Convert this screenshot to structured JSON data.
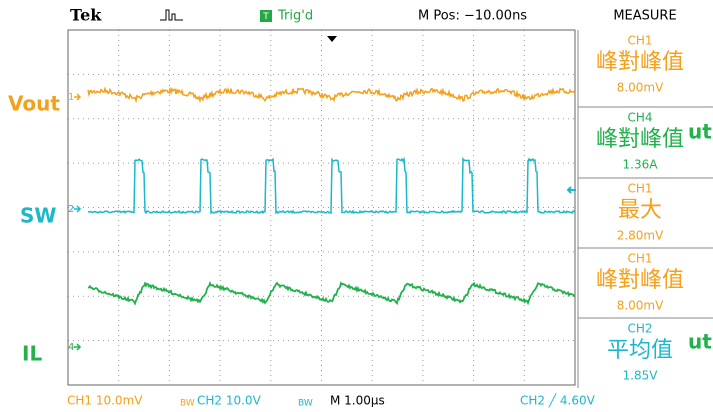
{
  "header": {
    "brand": "Tek",
    "trigger": "Trig'd",
    "position": "M Pos: −10.00ns",
    "menu": "MEASURE"
  },
  "channels": [
    {
      "label": "Vout",
      "marker": "1"
    },
    {
      "label": "SW",
      "marker": "2"
    },
    {
      "label": "IL",
      "marker": "4"
    }
  ],
  "measurements": [
    {
      "source": "CH1",
      "name": "峰對峰值",
      "value": "8.00mV"
    },
    {
      "source": "CH4",
      "name": "峰對峰值",
      "value": "1.36A"
    },
    {
      "source": "CH1",
      "name": "最大",
      "value": "2.80mV"
    },
    {
      "source": "CH1",
      "name": "峰對峰值",
      "value": "8.00mV"
    },
    {
      "source": "CH2",
      "name": "平均值",
      "value": "1.85V"
    }
  ],
  "footer": {
    "ch1": "CH1  10.0mV",
    "ch1_bw": "BW",
    "ch2": "CH2  10.0V",
    "ch2_bw": "BW",
    "timebase": "M 1.00µs",
    "trigger": "CH2 ╱ 4.60V"
  },
  "clipped": [
    "ut",
    "ut"
  ]
}
